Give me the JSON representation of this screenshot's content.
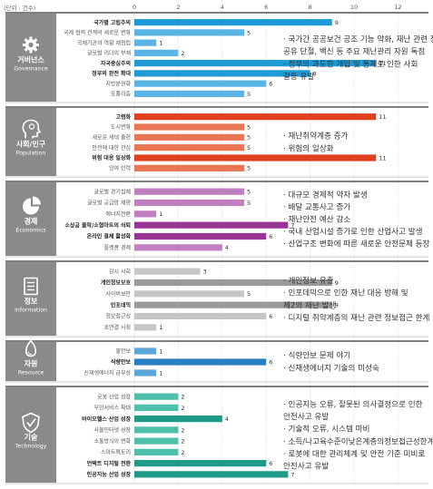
{
  "unit_label": "(단위 : 건수)",
  "chart_data": {
    "type": "bar",
    "orientation": "horizontal",
    "xlim": [
      0,
      12
    ],
    "x_ticks": [
      0,
      2,
      4,
      6,
      8,
      10,
      12
    ],
    "grid": true,
    "groups": [
      {
        "name": "거버넌스",
        "name_en": "Governance",
        "icon": "gear-icon",
        "color": "#5bb4e6",
        "accent": "#1e9ad7",
        "items": [
          {
            "label": "국가별 고립주의",
            "value": 9,
            "bold": true
          },
          {
            "label": "국제 협력 관계의 새로운 변화",
            "value": 5,
            "bold": false
          },
          {
            "label": "국제기관의 역할 재정립",
            "value": 1,
            "bold": false
          },
          {
            "label": "글로벌 리더의 부재",
            "value": 2,
            "bold": false
          },
          {
            "label": "자국중심주의",
            "value": 11,
            "bold": true
          },
          {
            "label": "정부의 완전 확대",
            "value": 8,
            "bold": true
          },
          {
            "label": "지방분권화",
            "value": 6,
            "bold": false
          },
          {
            "label": "포퓰리즘",
            "value": 5,
            "bold": false
          }
        ],
        "notes": [
          [
            "· 국가간 공공보건 공조 기능 약화, 재난 관련 정보",
            "  공유 단절, 백신 등 주요 재난관리 자원 독점"
          ],
          [
            "· 정부의 과도한 개입 및 통제로 인한 사회",
            "  갈등 유발"
          ]
        ]
      },
      {
        "name": "사회/인구",
        "name_en": "Population",
        "icon": "head-icon",
        "color": "#e87653",
        "accent": "#e0401e",
        "items": [
          {
            "label": "고령화",
            "value": 11,
            "bold": true
          },
          {
            "label": "도시변화",
            "value": 5,
            "bold": false
          },
          {
            "label": "새로운 세대 출현",
            "value": 5,
            "bold": false
          },
          {
            "label": "안전에 대한 관심",
            "value": 5,
            "bold": false
          },
          {
            "label": "위험 대응 일상화",
            "value": 11,
            "bold": true
          },
          {
            "label": "잉여 인력",
            "value": 5,
            "bold": false
          }
        ],
        "notes": [
          [
            "· 재난취약계층 증가"
          ],
          [
            "· 위험의 일상화"
          ]
        ]
      },
      {
        "name": "경제",
        "name_en": "Economics",
        "icon": "pie-chart-icon",
        "color": "#c07fc0",
        "accent": "#9a3494",
        "items": [
          {
            "label": "글로벌 경기침체",
            "value": 5,
            "bold": false
          },
          {
            "label": "글로벌 공급망 재편",
            "value": 5,
            "bold": false
          },
          {
            "label": "에너지전환",
            "value": 1,
            "bold": false
          },
          {
            "label": "소상공 몰락/소형마트의 쇠퇴",
            "value": 7,
            "bold": true
          },
          {
            "label": "온라인 결제 활성화",
            "value": 6,
            "bold": true
          },
          {
            "label": "플랫폼 경제",
            "value": 4,
            "bold": false
          }
        ],
        "notes": [
          [
            "· 대규모 경제적 약자 발생"
          ],
          [
            "· 배달 교통사고 증가"
          ],
          [
            "· 재난안전 예산 감소"
          ],
          [
            "· 국내 산업시설 증가로 인한 산업사고 발생"
          ],
          [
            "· 산업구조 변화에 따른 새로운 안전문제 등장"
          ]
        ]
      },
      {
        "name": "정보",
        "name_en": "Information",
        "icon": "document-icon",
        "color": "#c6c6c6",
        "accent": "#9a9a9a",
        "items": [
          {
            "label": "감시 사회",
            "value": 3,
            "bold": false
          },
          {
            "label": "개인정보보호",
            "value": 9,
            "bold": true
          },
          {
            "label": "사이버보안",
            "value": 5,
            "bold": false
          },
          {
            "label": "인포데믹",
            "value": 9,
            "bold": true
          },
          {
            "label": "정보접근성",
            "value": 6,
            "bold": false
          },
          {
            "label": "초연결 사회",
            "value": 1,
            "bold": false
          }
        ],
        "notes": [
          [
            "· 개인정보 유출"
          ],
          [
            "· 인포데믹으로 인한 재난 대응 방해 및",
            "  제2의 재난 발생"
          ],
          [
            "· 디지털 취약계층의 재난 관련 정보접근 한계"
          ]
        ]
      },
      {
        "name": "자원",
        "name_en": "Resource",
        "icon": "drop-icon",
        "color": "#5ba7d9",
        "accent": "#2a7fc0",
        "items": [
          {
            "label": "물안보",
            "value": 1,
            "bold": false
          },
          {
            "label": "식량안보",
            "value": 6,
            "bold": true
          },
          {
            "label": "신재생에너지 급부상",
            "value": 1,
            "bold": false
          }
        ],
        "notes": [
          [
            "· 식량안보 문제 야기"
          ],
          [
            "· 신재생에너지 기술의 미성숙"
          ]
        ]
      },
      {
        "name": "기술",
        "name_en": "Technology",
        "icon": "shield-icon",
        "color": "#4dbfab",
        "accent": "#1f9a87",
        "items": [
          {
            "label": "로봇 산업 성장",
            "value": 2,
            "bold": false
          },
          {
            "label": "무인서비스 확대",
            "value": 2,
            "bold": false
          },
          {
            "label": "바이오헬스 산업 성장",
            "value": 4,
            "bold": true
          },
          {
            "label": "사물인터넷 성장",
            "value": 2,
            "bold": false
          },
          {
            "label": "소통방식의 변화",
            "value": 2,
            "bold": false
          },
          {
            "label": "스마트팩토리",
            "value": 2,
            "bold": false
          },
          {
            "label": "언택트 디지털 전환",
            "value": 6,
            "bold": true
          },
          {
            "label": "인공지능 산업 성장",
            "value": 7,
            "bold": true
          }
        ],
        "notes": [
          [
            "· 인공지능 오류, 잘못된 의사결정으로 인한",
            "  안전사고 유발"
          ],
          [
            "· 기술적 오류, 시스템 마비"
          ],
          [
            "· 소득/나고육수준이낮은계층의정보접근성한계"
          ],
          [
            "· 로봇에 대한 관리체계 및 안전 기준 미비로",
            "  안전사고 유발"
          ]
        ]
      }
    ]
  }
}
